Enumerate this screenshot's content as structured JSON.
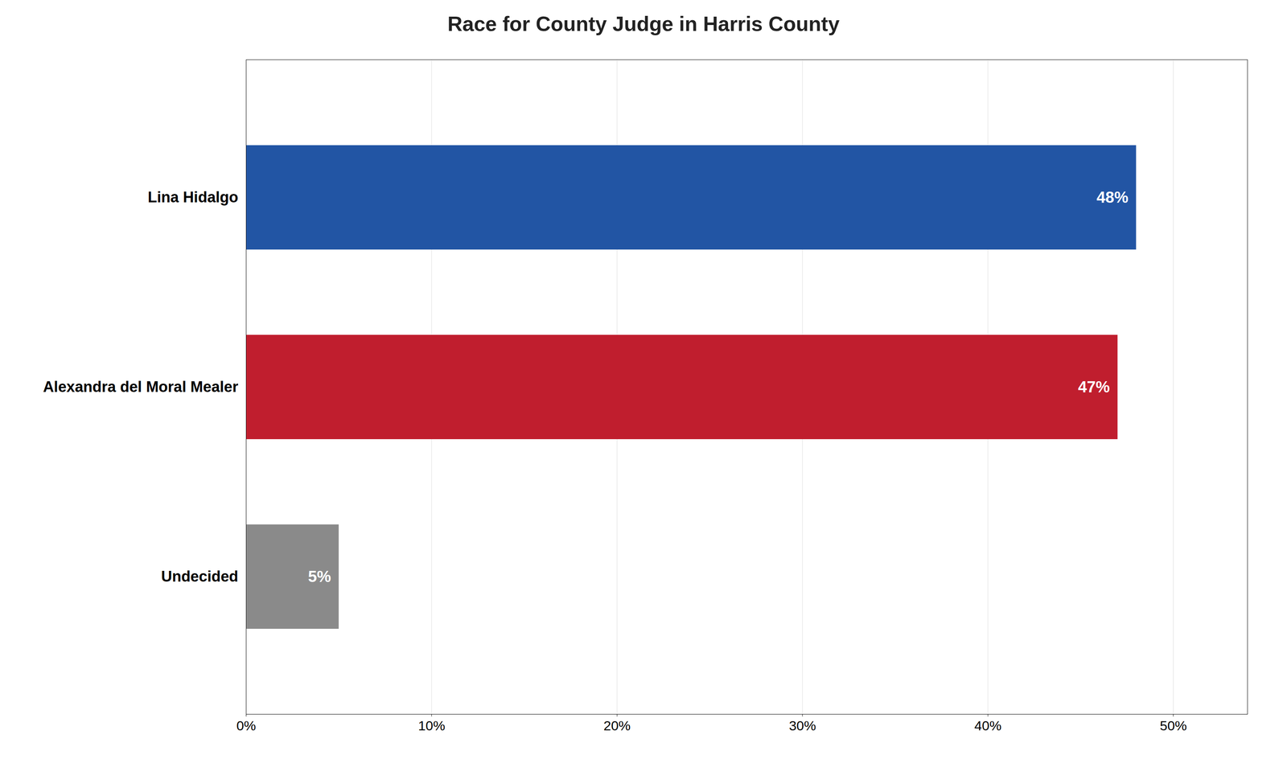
{
  "chart_data": {
    "type": "bar",
    "title": "Race for County Judge in Harris County",
    "orientation": "horizontal",
    "categories": [
      "Lina Hidalgo",
      "Alexandra del Moral Mealer",
      "Undecided"
    ],
    "values": [
      48,
      47,
      5
    ],
    "value_labels": [
      "48%",
      "47%",
      "5%"
    ],
    "data_labels": true,
    "colors": [
      "#2255a4",
      "#c01e2e",
      "#8a8a8a"
    ],
    "xlim": [
      0,
      54
    ],
    "xticks": [
      {
        "value": 0,
        "label": "0%"
      },
      {
        "value": 10,
        "label": "10%"
      },
      {
        "value": 20,
        "label": "20%"
      },
      {
        "value": 30,
        "label": "30%"
      },
      {
        "value": 40,
        "label": "40%"
      },
      {
        "value": 50,
        "label": "50%"
      }
    ],
    "grid": true
  }
}
